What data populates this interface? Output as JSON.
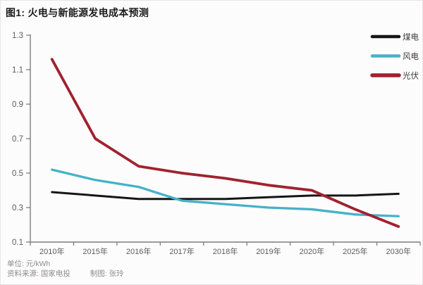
{
  "title": "图1: 火电与新能源发电成本预测",
  "footer": {
    "unit": "单位: 元/kWh",
    "source": "资料来源: 国家电投",
    "credit": "制图: 张玲"
  },
  "colors": {
    "coal": "#161616",
    "wind": "#46b1c9",
    "solar": "#a0222f",
    "axis": "#7d7d7d",
    "tick_label": "#5c5c5c",
    "legend_label": "#3c3c3c"
  },
  "chart_data": {
    "type": "line",
    "title": "图1: 火电与新能源发电成本预测",
    "unit": "元/kWh",
    "categories": [
      "2010年",
      "2015年",
      "2016年",
      "2017年",
      "2018年",
      "2019年",
      "2020年",
      "2025年",
      "2030年"
    ],
    "series": [
      {
        "key": "coal",
        "name": "煤电",
        "values": [
          0.39,
          0.37,
          0.35,
          0.35,
          0.35,
          0.36,
          0.37,
          0.37,
          0.38
        ]
      },
      {
        "key": "wind",
        "name": "风电",
        "values": [
          0.52,
          0.46,
          0.42,
          0.34,
          0.32,
          0.3,
          0.29,
          0.26,
          0.25
        ]
      },
      {
        "key": "solar",
        "name": "光伏",
        "values": [
          1.16,
          0.7,
          0.54,
          0.5,
          0.47,
          0.43,
          0.4,
          0.29,
          0.19
        ]
      }
    ],
    "xlabel": "",
    "ylabel": "",
    "y_tick_labels": [
      "0.1",
      "0.3",
      "0.5",
      "0.7",
      "0.9",
      "1.1",
      "1.3"
    ],
    "ylim": [
      0.1,
      1.3
    ],
    "grid": false,
    "legend_position": "top-right"
  }
}
